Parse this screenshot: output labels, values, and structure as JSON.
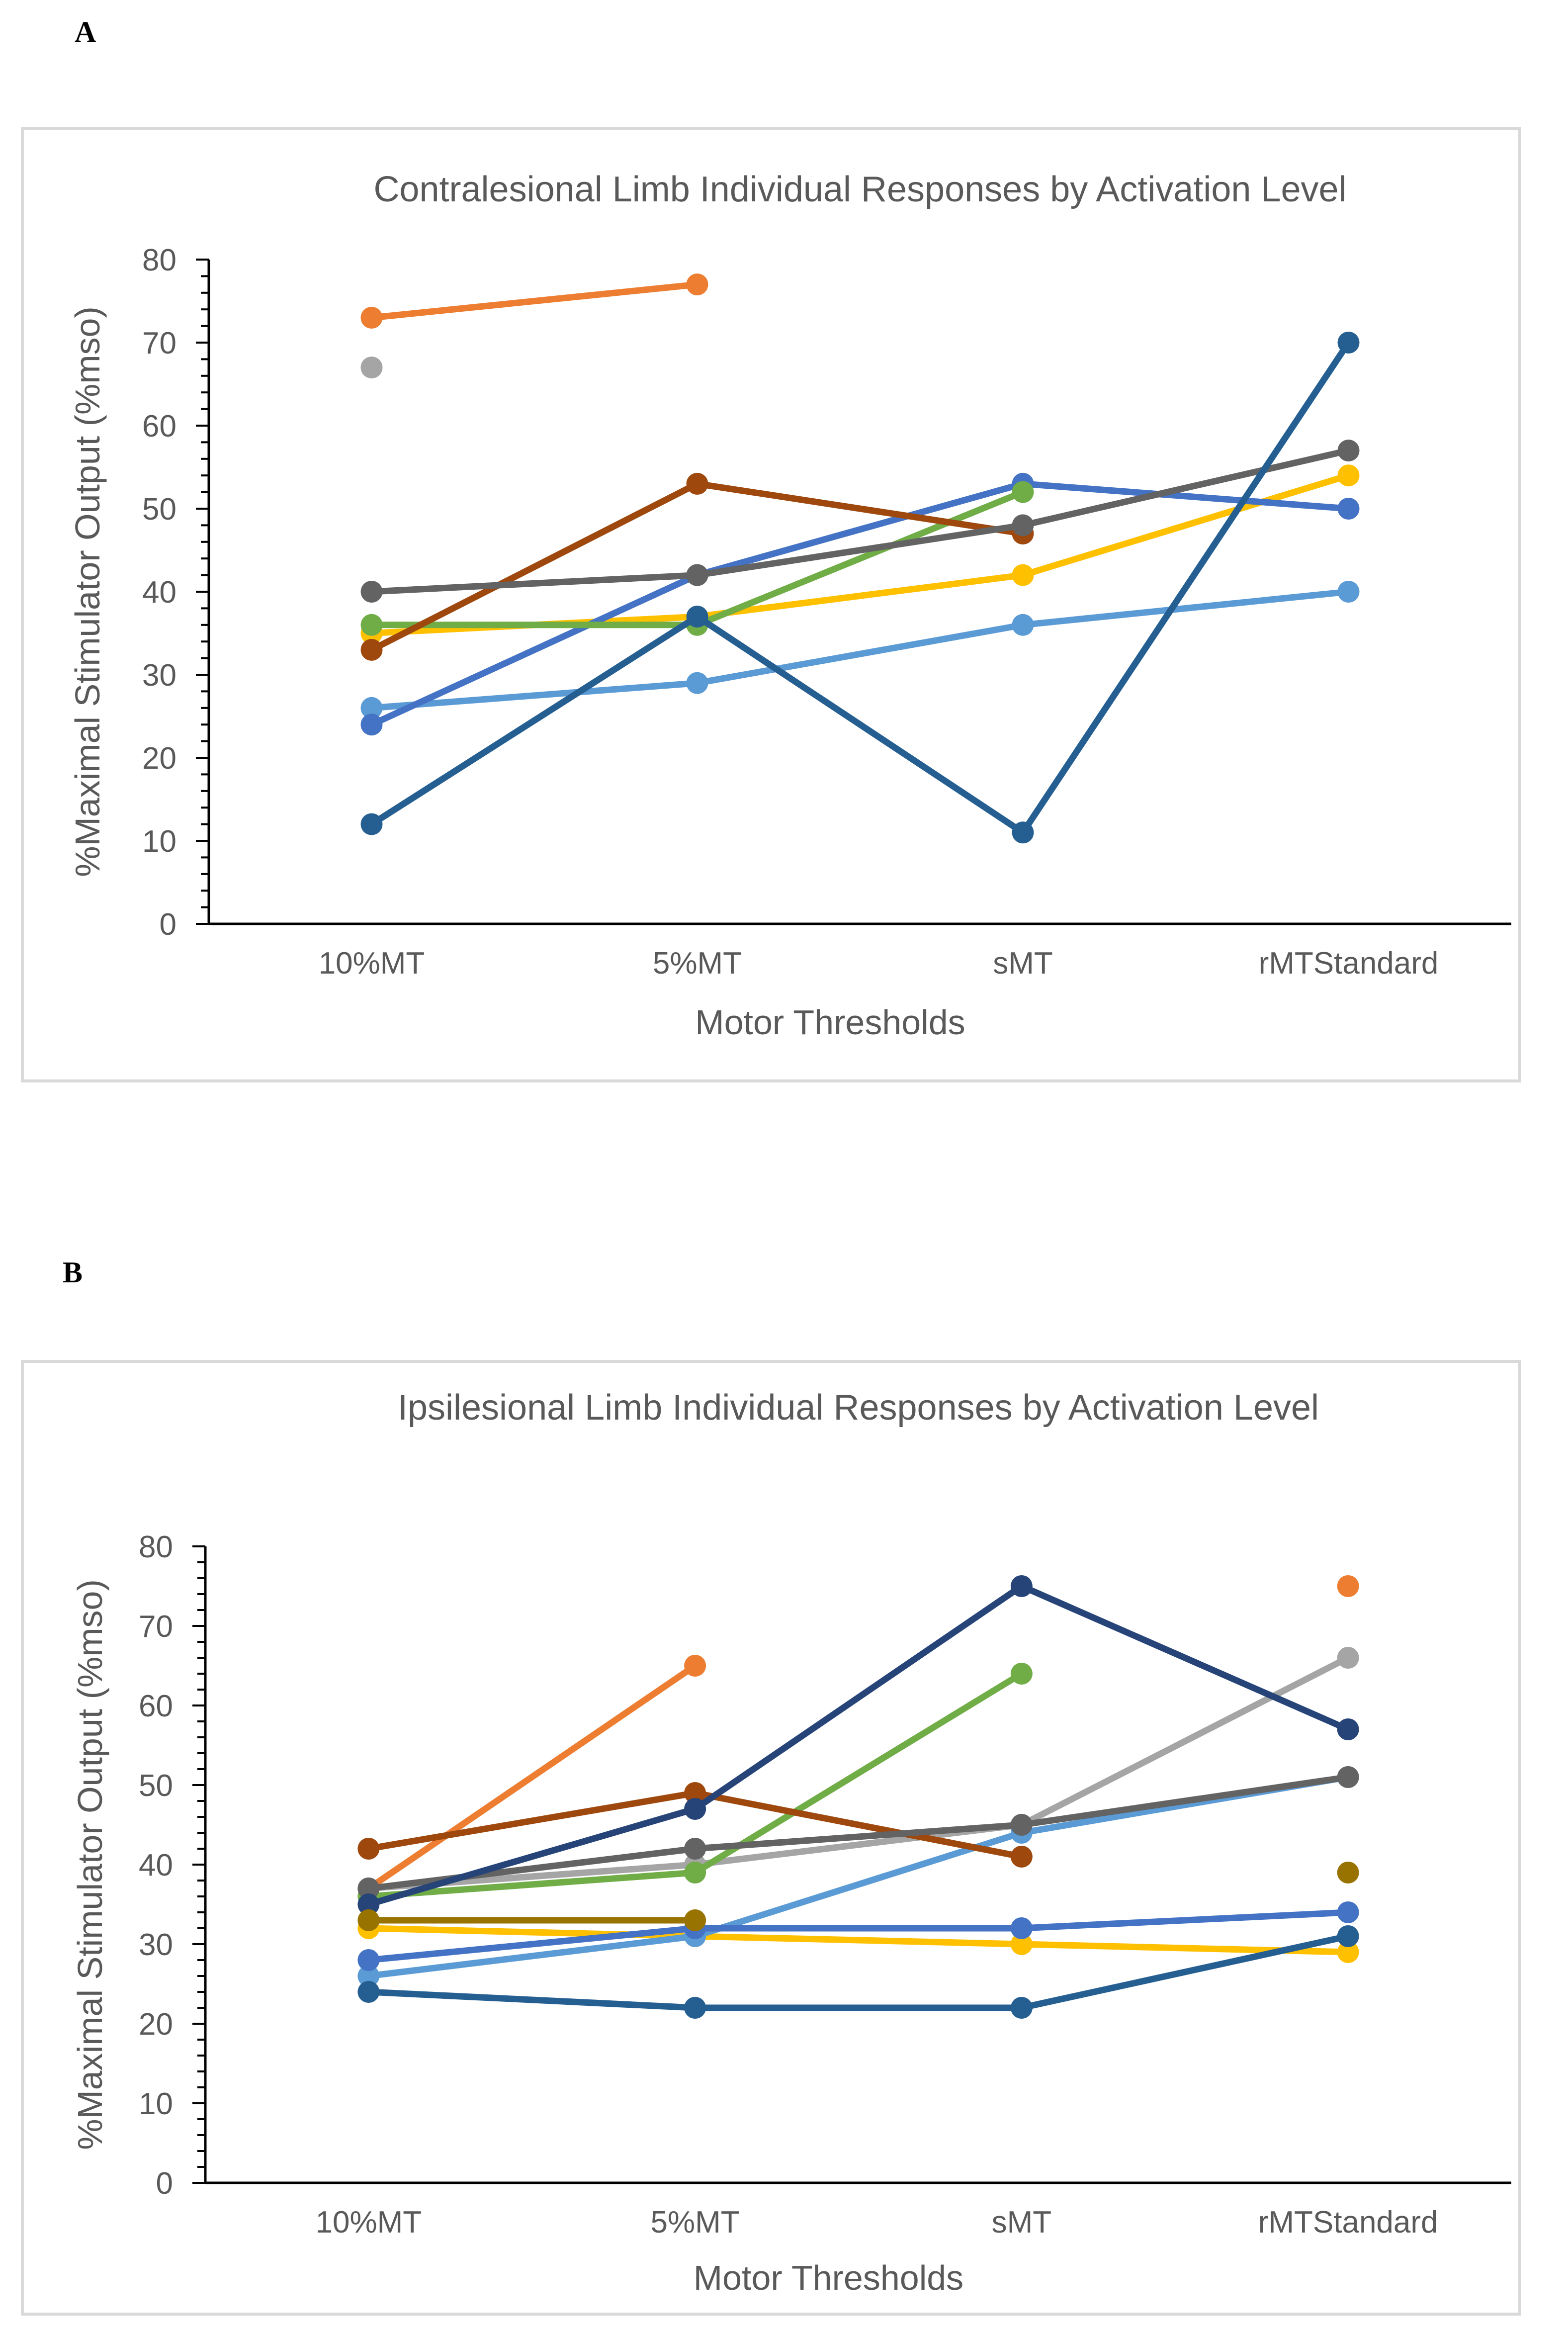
{
  "panels": {
    "a_label": "A",
    "b_label": "B"
  },
  "chart_data": [
    {
      "type": "line",
      "title": "Contralesional Limb Individual Responses by Activation Level",
      "xlabel": "Motor Thresholds",
      "ylabel": "%Maximal Stimulator Output (%mso)",
      "categories": [
        "10%MT",
        "5%MT",
        "sMT",
        "rMTStandard"
      ],
      "ylim": [
        0,
        80
      ],
      "yticks": [
        0,
        10,
        20,
        30,
        40,
        50,
        60,
        70,
        80
      ],
      "grid": false,
      "legend": "none",
      "series": [
        {
          "color": "#ed7d31",
          "values": [
            73,
            77,
            null,
            null
          ]
        },
        {
          "color": "#a5a5a5",
          "values": [
            67,
            null,
            null,
            null
          ]
        },
        {
          "color": "#ffc000",
          "values": [
            35,
            37,
            42,
            54
          ]
        },
        {
          "color": "#5b9bd5",
          "values": [
            26,
            29,
            36,
            40
          ]
        },
        {
          "color": "#4472c4",
          "values": [
            24,
            42,
            53,
            50
          ]
        },
        {
          "color": "#70ad47",
          "values": [
            36,
            36,
            52,
            null
          ]
        },
        {
          "color": "#9e480e",
          "values": [
            33,
            53,
            47,
            null
          ]
        },
        {
          "color": "#636363",
          "values": [
            40,
            42,
            48,
            57
          ]
        },
        {
          "color": "#255e91",
          "values": [
            12,
            37,
            11,
            70
          ]
        }
      ]
    },
    {
      "type": "line",
      "title": "Ipsilesional Limb Individual Responses by Activation Level",
      "xlabel": "Motor Thresholds",
      "ylabel": "%Maximal Stimulator Output (%mso)",
      "categories": [
        "10%MT",
        "5%MT",
        "sMT",
        "rMTStandard"
      ],
      "ylim": [
        0,
        80
      ],
      "yticks": [
        0,
        10,
        20,
        30,
        40,
        50,
        60,
        70,
        80
      ],
      "grid": false,
      "legend": "none",
      "series": [
        {
          "color": "#ed7d31",
          "values": [
            37,
            65,
            null,
            75
          ]
        },
        {
          "color": "#a5a5a5",
          "values": [
            37,
            40,
            45,
            66
          ]
        },
        {
          "color": "#ffc000",
          "values": [
            32,
            31,
            30,
            29
          ]
        },
        {
          "color": "#5b9bd5",
          "values": [
            26,
            31,
            44,
            51
          ]
        },
        {
          "color": "#4472c4",
          "values": [
            28,
            32,
            32,
            34
          ]
        },
        {
          "color": "#70ad47",
          "values": [
            36,
            39,
            64,
            null
          ]
        },
        {
          "color": "#9e480e",
          "values": [
            42,
            49,
            41,
            null
          ]
        },
        {
          "color": "#636363",
          "values": [
            37,
            42,
            45,
            51
          ]
        },
        {
          "color": "#264478",
          "values": [
            35,
            47,
            75,
            57
          ]
        },
        {
          "color": "#997300",
          "values": [
            33,
            33,
            null,
            39
          ]
        },
        {
          "color": "#255e91",
          "values": [
            24,
            22,
            22,
            31
          ]
        }
      ]
    }
  ]
}
